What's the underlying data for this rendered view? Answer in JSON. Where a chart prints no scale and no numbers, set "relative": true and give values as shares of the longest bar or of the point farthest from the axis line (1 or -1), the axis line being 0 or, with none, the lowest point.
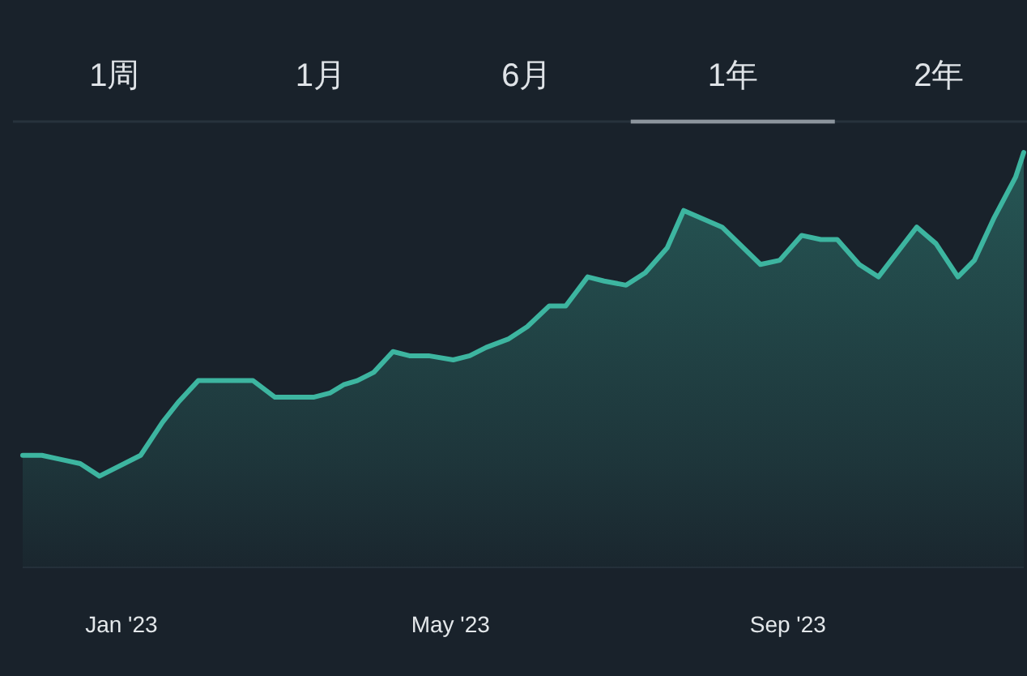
{
  "chart_data": [
    {
      "type": "other",
      "annotations": [
        "1周",
        "1月",
        "6月",
        "1年",
        "2年"
      ]
    },
    {
      "type": "area",
      "relative": true,
      "color": "#3db5a0",
      "x": [
        "2022-11-26",
        "2022-12-03",
        "2022-12-10",
        "2022-12-17",
        "2022-12-24",
        "2023-01-08",
        "2023-01-16",
        "2023-01-22",
        "2023-01-29",
        "2023-02-04",
        "2023-02-12",
        "2023-02-18",
        "2023-02-26",
        "2023-03-12",
        "2023-03-18",
        "2023-03-23",
        "2023-03-28",
        "2023-04-03",
        "2023-04-10",
        "2023-04-16",
        "2023-04-23",
        "2023-05-02",
        "2023-05-08",
        "2023-05-14",
        "2023-05-22",
        "2023-05-29",
        "2023-06-06",
        "2023-06-12",
        "2023-06-20",
        "2023-06-26",
        "2023-07-04",
        "2023-07-11",
        "2023-07-19",
        "2023-07-25",
        "2023-08-01",
        "2023-08-08",
        "2023-08-22",
        "2023-08-29",
        "2023-09-06",
        "2023-09-13",
        "2023-09-19",
        "2023-09-27",
        "2023-10-04",
        "2023-10-11",
        "2023-10-18",
        "2023-10-25",
        "2023-11-02",
        "2023-11-08",
        "2023-11-15",
        "2023-11-23",
        "2023-11-26"
      ],
      "values": [
        0.27,
        0.27,
        0.26,
        0.25,
        0.22,
        0.27,
        0.35,
        0.4,
        0.45,
        0.45,
        0.45,
        0.45,
        0.41,
        0.41,
        0.42,
        0.44,
        0.45,
        0.47,
        0.52,
        0.51,
        0.51,
        0.5,
        0.51,
        0.53,
        0.55,
        0.58,
        0.63,
        0.63,
        0.7,
        0.69,
        0.68,
        0.71,
        0.77,
        0.86,
        0.84,
        0.82,
        0.73,
        0.74,
        0.8,
        0.79,
        0.79,
        0.73,
        0.7,
        0.76,
        0.82,
        0.78,
        0.7,
        0.74,
        0.84,
        0.94,
        1
      ],
      "xlim": [
        "2022-11-26",
        "2023-11-26"
      ],
      "xticks": [
        {
          "value": "2023-01-01",
          "label": "Jan '23"
        },
        {
          "value": "2023-05-01",
          "label": "May '23"
        },
        {
          "value": "2023-09-01",
          "label": "Sep '23"
        }
      ]
    }
  ]
}
